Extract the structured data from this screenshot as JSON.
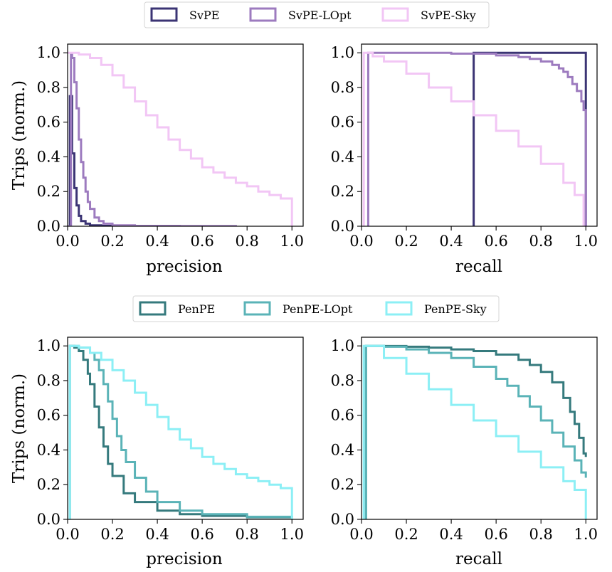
{
  "colors": {
    "SvPE": "#3b3474",
    "SvPE-LOpt": "#9d7bbf",
    "SvPE-Sky": "#f2c6f5",
    "PenPE": "#357a7d",
    "PenPE-LOpt": "#5ab3b7",
    "PenPE-Sky": "#8ceff5"
  },
  "legends": [
    [
      "SvPE",
      "SvPE-LOpt",
      "SvPE-Sky"
    ],
    [
      "PenPE",
      "PenPE-LOpt",
      "PenPE-Sky"
    ]
  ],
  "chart_data": [
    {
      "type": "line",
      "title": "",
      "xlabel": "precision",
      "ylabel": "Trips (norm.)",
      "xlim": [
        0,
        1.05
      ],
      "ylim": [
        0,
        1.05
      ],
      "xticks": [
        "0.0",
        "0.2",
        "0.4",
        "0.6",
        "0.8",
        "1.0"
      ],
      "yticks": [
        "0.0",
        "0.2",
        "0.4",
        "0.6",
        "0.8",
        "1.0"
      ],
      "series": [
        {
          "name": "SvPE",
          "x": [
            0.0,
            0.01,
            0.02,
            0.03,
            0.04,
            0.05,
            0.06,
            0.08,
            0.1,
            0.15,
            0.25
          ],
          "y": [
            0.0,
            0.75,
            0.42,
            0.22,
            0.12,
            0.06,
            0.03,
            0.015,
            0.005,
            0.002,
            0.0
          ]
        },
        {
          "name": "SvPE-LOpt",
          "x": [
            0.0,
            0.015,
            0.02,
            0.03,
            0.04,
            0.05,
            0.06,
            0.07,
            0.08,
            0.09,
            0.1,
            0.12,
            0.14,
            0.16,
            0.2,
            0.3,
            0.5,
            0.75
          ],
          "y": [
            0.0,
            0.99,
            0.97,
            0.83,
            0.68,
            0.5,
            0.37,
            0.28,
            0.2,
            0.14,
            0.1,
            0.05,
            0.03,
            0.015,
            0.005,
            0.002,
            0.001,
            0.0
          ]
        },
        {
          "name": "SvPE-Sky",
          "x": [
            0.0,
            0.02,
            0.05,
            0.1,
            0.15,
            0.2,
            0.25,
            0.3,
            0.35,
            0.4,
            0.45,
            0.5,
            0.55,
            0.6,
            0.65,
            0.7,
            0.75,
            0.8,
            0.85,
            0.9,
            0.95,
            1.0,
            1.0
          ],
          "y": [
            1.0,
            1.0,
            0.99,
            0.97,
            0.93,
            0.87,
            0.8,
            0.72,
            0.64,
            0.57,
            0.5,
            0.44,
            0.39,
            0.34,
            0.31,
            0.28,
            0.25,
            0.23,
            0.2,
            0.18,
            0.16,
            0.14,
            0.0
          ]
        }
      ]
    },
    {
      "type": "line",
      "title": "",
      "xlabel": "recall",
      "ylabel": "",
      "xlim": [
        0,
        1.05
      ],
      "ylim": [
        0,
        1.05
      ],
      "xticks": [
        "0.0",
        "0.2",
        "0.4",
        "0.6",
        "0.8",
        "1.0"
      ],
      "yticks": [
        "0.0",
        "0.2",
        "0.4",
        "0.6",
        "0.8",
        "1.0"
      ],
      "series": [
        {
          "name": "SvPE",
          "x": [
            0.5,
            0.5,
            1.0,
            1.0
          ],
          "y": [
            0.0,
            1.0,
            1.0,
            0.0
          ]
        },
        {
          "name": "SvPE-LOpt",
          "x": [
            0.03,
            0.03,
            0.2,
            0.4,
            0.6,
            0.7,
            0.75,
            0.8,
            0.85,
            0.88,
            0.9,
            0.92,
            0.94,
            0.96,
            0.98,
            0.99,
            1.0,
            1.0
          ],
          "y": [
            0.0,
            1.0,
            1.0,
            0.995,
            0.985,
            0.975,
            0.965,
            0.95,
            0.93,
            0.91,
            0.89,
            0.86,
            0.82,
            0.78,
            0.72,
            0.67,
            0.64,
            0.0
          ]
        },
        {
          "name": "SvPE-Sky",
          "x": [
            0.01,
            0.01,
            0.05,
            0.1,
            0.2,
            0.3,
            0.4,
            0.5,
            0.6,
            0.7,
            0.8,
            0.9,
            0.95,
            0.99,
            0.99
          ],
          "y": [
            0.0,
            1.0,
            0.98,
            0.95,
            0.88,
            0.8,
            0.72,
            0.64,
            0.55,
            0.46,
            0.36,
            0.25,
            0.18,
            0.12,
            0.0
          ]
        }
      ]
    },
    {
      "type": "line",
      "title": "",
      "xlabel": "precision",
      "ylabel": "Trips (norm.)",
      "xlim": [
        0,
        1.05
      ],
      "ylim": [
        0,
        1.05
      ],
      "xticks": [
        "0.0",
        "0.2",
        "0.4",
        "0.6",
        "0.8",
        "1.0"
      ],
      "yticks": [
        "0.0",
        "0.2",
        "0.4",
        "0.6",
        "0.8",
        "1.0"
      ],
      "series": [
        {
          "name": "PenPE",
          "x": [
            0.01,
            0.01,
            0.03,
            0.05,
            0.07,
            0.09,
            0.1,
            0.12,
            0.14,
            0.16,
            0.18,
            0.2,
            0.25,
            0.3,
            0.4,
            0.5,
            0.6,
            0.8,
            1.0
          ],
          "y": [
            0.0,
            1.0,
            0.99,
            0.97,
            0.92,
            0.84,
            0.78,
            0.65,
            0.53,
            0.42,
            0.32,
            0.25,
            0.15,
            0.1,
            0.05,
            0.03,
            0.02,
            0.012,
            0.01
          ]
        },
        {
          "name": "PenPE-LOpt",
          "x": [
            0.01,
            0.01,
            0.05,
            0.1,
            0.12,
            0.14,
            0.16,
            0.18,
            0.2,
            0.22,
            0.24,
            0.26,
            0.3,
            0.35,
            0.4,
            0.5,
            0.6,
            0.8,
            1.0
          ],
          "y": [
            0.0,
            1.0,
            0.99,
            0.96,
            0.92,
            0.86,
            0.78,
            0.68,
            0.58,
            0.48,
            0.4,
            0.33,
            0.24,
            0.16,
            0.1,
            0.05,
            0.03,
            0.015,
            0.01
          ]
        },
        {
          "name": "PenPE-Sky",
          "x": [
            0.01,
            0.01,
            0.05,
            0.1,
            0.15,
            0.2,
            0.25,
            0.3,
            0.35,
            0.4,
            0.45,
            0.5,
            0.55,
            0.6,
            0.65,
            0.7,
            0.75,
            0.8,
            0.85,
            0.9,
            0.95,
            1.0,
            1.0
          ],
          "y": [
            0.0,
            1.0,
            0.99,
            0.96,
            0.92,
            0.86,
            0.8,
            0.73,
            0.66,
            0.59,
            0.52,
            0.46,
            0.41,
            0.36,
            0.32,
            0.29,
            0.26,
            0.24,
            0.22,
            0.2,
            0.18,
            0.16,
            0.0
          ]
        }
      ]
    },
    {
      "type": "line",
      "title": "",
      "xlabel": "recall",
      "ylabel": "",
      "xlim": [
        0,
        1.05
      ],
      "ylim": [
        0,
        1.05
      ],
      "xticks": [
        "0.0",
        "0.2",
        "0.4",
        "0.6",
        "0.8",
        "1.0"
      ],
      "yticks": [
        "0.0",
        "0.2",
        "0.4",
        "0.6",
        "0.8",
        "1.0"
      ],
      "series": [
        {
          "name": "PenPE",
          "x": [
            0.02,
            0.02,
            0.1,
            0.2,
            0.3,
            0.4,
            0.5,
            0.6,
            0.7,
            0.75,
            0.8,
            0.85,
            0.9,
            0.93,
            0.95,
            0.97,
            0.99,
            1.0
          ],
          "y": [
            0.0,
            1.0,
            0.999,
            0.995,
            0.99,
            0.98,
            0.97,
            0.95,
            0.92,
            0.89,
            0.85,
            0.79,
            0.7,
            0.62,
            0.55,
            0.47,
            0.38,
            0.36
          ]
        },
        {
          "name": "PenPE-LOpt",
          "x": [
            0.02,
            0.02,
            0.1,
            0.2,
            0.3,
            0.4,
            0.5,
            0.6,
            0.65,
            0.7,
            0.75,
            0.8,
            0.85,
            0.9,
            0.95,
            0.98,
            1.0
          ],
          "y": [
            0.0,
            1.0,
            0.995,
            0.98,
            0.96,
            0.93,
            0.88,
            0.81,
            0.77,
            0.71,
            0.65,
            0.57,
            0.5,
            0.42,
            0.34,
            0.27,
            0.24
          ]
        },
        {
          "name": "PenPE-Sky",
          "x": [
            0.01,
            0.01,
            0.1,
            0.2,
            0.3,
            0.4,
            0.5,
            0.6,
            0.7,
            0.8,
            0.9,
            0.95,
            1.0,
            1.0
          ],
          "y": [
            0.0,
            1.0,
            0.93,
            0.84,
            0.75,
            0.66,
            0.57,
            0.48,
            0.39,
            0.3,
            0.22,
            0.17,
            0.12,
            0.0
          ]
        }
      ]
    }
  ]
}
